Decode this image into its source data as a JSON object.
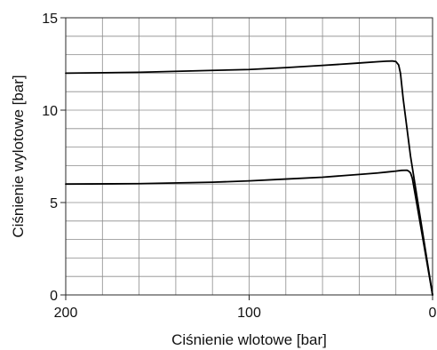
{
  "chart_data": {
    "type": "line",
    "xlabel": "Ciśnienie wlotowe [bar]",
    "ylabel": "Ciśnienie wylotowe [bar]",
    "xlim": [
      200,
      0
    ],
    "ylim": [
      0,
      15
    ],
    "x_direction": "reversed",
    "x_tick_labels": [
      "200",
      "100",
      "0"
    ],
    "y_tick_labels": [
      "0",
      "5",
      "10",
      "15"
    ],
    "grid": true,
    "series": [
      {
        "x": [
          200,
          160,
          120,
          100,
          80,
          60,
          40,
          30,
          25,
          22,
          20,
          18.5,
          17.5,
          16,
          12,
          8,
          4,
          0
        ],
        "y": [
          12.0,
          12.05,
          12.15,
          12.2,
          12.3,
          12.42,
          12.55,
          12.62,
          12.65,
          12.66,
          12.63,
          12.45,
          12.0,
          10.6,
          7.5,
          5.0,
          2.5,
          0.0
        ]
      },
      {
        "x": [
          200,
          160,
          120,
          100,
          80,
          60,
          40,
          30,
          25,
          20,
          17,
          14,
          13,
          12,
          11,
          8,
          4,
          0
        ],
        "y": [
          6.0,
          6.02,
          6.1,
          6.17,
          6.27,
          6.37,
          6.52,
          6.6,
          6.65,
          6.7,
          6.74,
          6.75,
          6.7,
          6.6,
          6.3,
          4.6,
          2.3,
          0.0
        ]
      }
    ]
  }
}
